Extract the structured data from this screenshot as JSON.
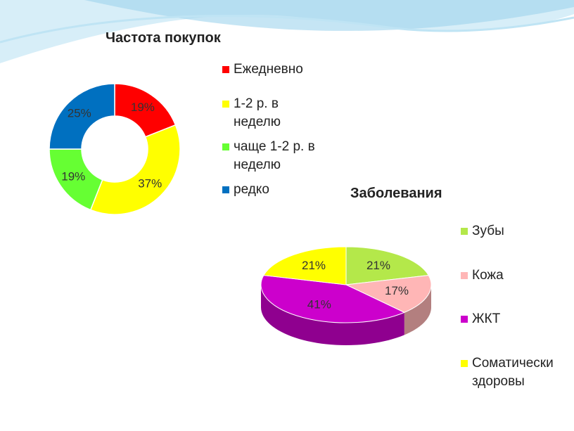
{
  "chart_data": [
    {
      "type": "donut",
      "title": "Частота покупок",
      "categories": [
        "Ежедневно",
        "1-2 р. в неделю",
        "чаще 1-2 р. в неделю",
        "редко"
      ],
      "values": [
        19,
        37,
        19,
        25
      ],
      "value_labels": [
        "19%",
        "37%",
        "19%",
        "25%"
      ],
      "colors": [
        "#ff0000",
        "#ffff00",
        "#66ff33",
        "#0070c0"
      ],
      "legend": "right"
    },
    {
      "type": "pie3d",
      "title": "Заболевания",
      "categories": [
        "Зубы",
        "Кожа",
        "ЖКТ",
        "Соматически здоровы"
      ],
      "values": [
        21,
        17,
        41,
        21
      ],
      "value_labels": [
        "21%",
        "17%",
        "41%",
        "21%"
      ],
      "colors": [
        "#b4e84a",
        "#ffb6b6",
        "#cc00cc",
        "#ffff00"
      ],
      "legend": "right"
    }
  ]
}
